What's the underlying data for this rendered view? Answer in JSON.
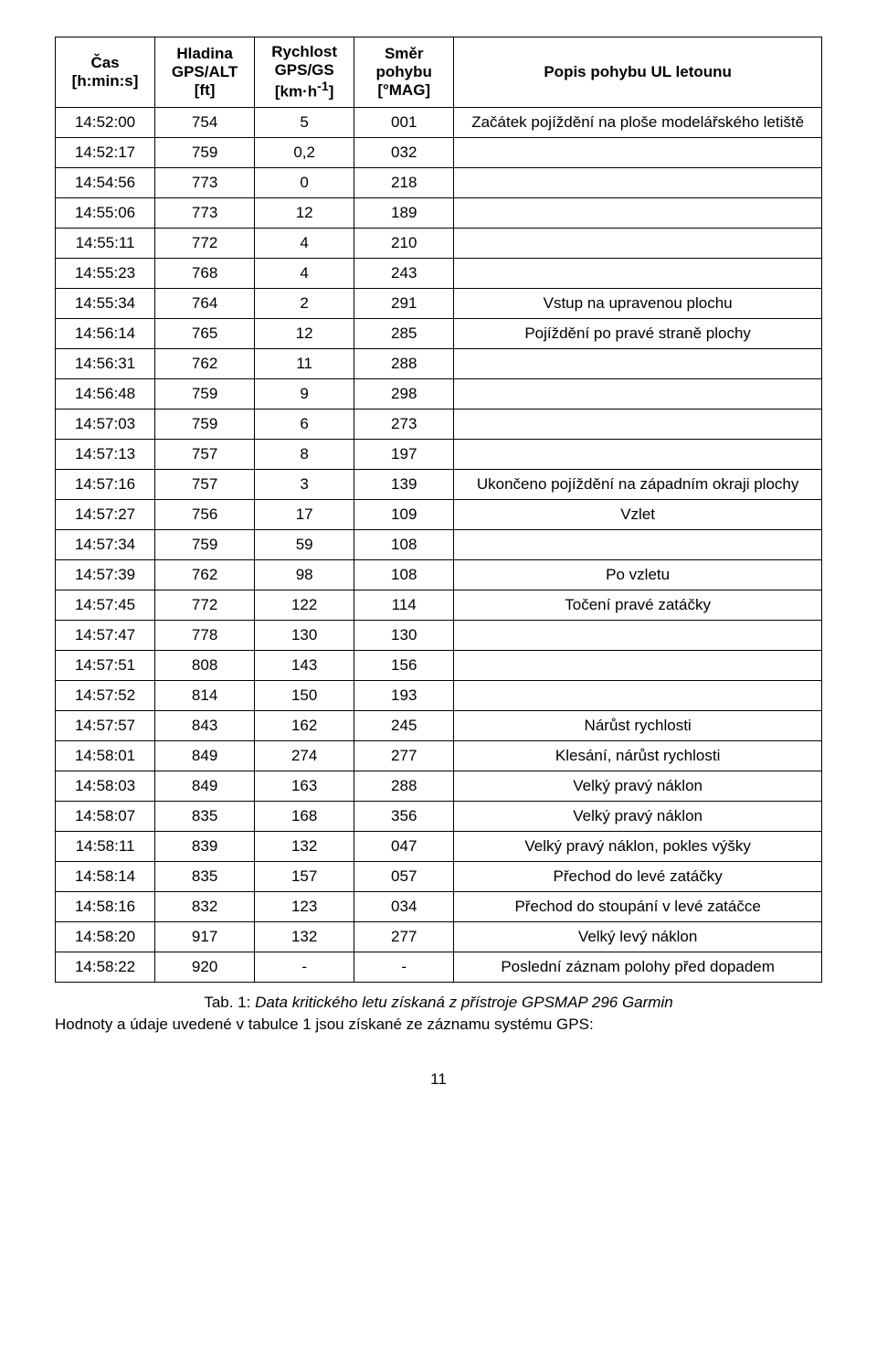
{
  "headers": {
    "col1": "Čas\n[h:min:s]",
    "col2": "Hladina\nGPS/ALT\n[ft]",
    "col3": "Rychlost\nGPS/GS\n[km·h⁻¹]",
    "col4": "Směr\npohybu\n[°MAG]",
    "col5": "Popis pohybu UL letounu"
  },
  "rows": [
    {
      "t": "14:52:00",
      "alt": "754",
      "gs": "5",
      "mag": "001",
      "desc": "Začátek pojíždění na ploše modelářského letiště"
    },
    {
      "t": "14:52:17",
      "alt": "759",
      "gs": "0,2",
      "mag": "032",
      "desc": ""
    },
    {
      "t": "14:54:56",
      "alt": "773",
      "gs": "0",
      "mag": "218",
      "desc": ""
    },
    {
      "t": "14:55:06",
      "alt": "773",
      "gs": "12",
      "mag": "189",
      "desc": ""
    },
    {
      "t": "14:55:11",
      "alt": "772",
      "gs": "4",
      "mag": "210",
      "desc": ""
    },
    {
      "t": "14:55:23",
      "alt": "768",
      "gs": "4",
      "mag": "243",
      "desc": ""
    },
    {
      "t": "14:55:34",
      "alt": "764",
      "gs": "2",
      "mag": "291",
      "desc": "Vstup na upravenou plochu"
    },
    {
      "t": "14:56:14",
      "alt": "765",
      "gs": "12",
      "mag": "285",
      "desc": "Pojíždění po pravé straně plochy"
    },
    {
      "t": "14:56:31",
      "alt": "762",
      "gs": "11",
      "mag": "288",
      "desc": ""
    },
    {
      "t": "14:56:48",
      "alt": "759",
      "gs": "9",
      "mag": "298",
      "desc": ""
    },
    {
      "t": "14:57:03",
      "alt": "759",
      "gs": "6",
      "mag": "273",
      "desc": ""
    },
    {
      "t": "14:57:13",
      "alt": "757",
      "gs": "8",
      "mag": "197",
      "desc": ""
    },
    {
      "t": "14:57:16",
      "alt": "757",
      "gs": "3",
      "mag": "139",
      "desc": "Ukončeno pojíždění na západním okraji plochy"
    },
    {
      "t": "14:57:27",
      "alt": "756",
      "gs": "17",
      "mag": "109",
      "desc": "Vzlet"
    },
    {
      "t": "14:57:34",
      "alt": "759",
      "gs": "59",
      "mag": "108",
      "desc": ""
    },
    {
      "t": "14:57:39",
      "alt": "762",
      "gs": "98",
      "mag": "108",
      "desc": "Po vzletu"
    },
    {
      "t": "14:57:45",
      "alt": "772",
      "gs": "122",
      "mag": "114",
      "desc": "Točení pravé zatáčky"
    },
    {
      "t": "14:57:47",
      "alt": "778",
      "gs": "130",
      "mag": "130",
      "desc": ""
    },
    {
      "t": "14:57:51",
      "alt": "808",
      "gs": "143",
      "mag": "156",
      "desc": ""
    },
    {
      "t": "14:57:52",
      "alt": "814",
      "gs": "150",
      "mag": "193",
      "desc": ""
    },
    {
      "t": "14:57:57",
      "alt": "843",
      "gs": "162",
      "mag": "245",
      "desc": "Nárůst rychlosti"
    },
    {
      "t": "14:58:01",
      "alt": "849",
      "gs": "274",
      "mag": "277",
      "desc": "Klesání, nárůst rychlosti"
    },
    {
      "t": "14:58:03",
      "alt": "849",
      "gs": "163",
      "mag": "288",
      "desc": "Velký pravý náklon"
    },
    {
      "t": "14:58:07",
      "alt": "835",
      "gs": "168",
      "mag": "356",
      "desc": "Velký pravý náklon"
    },
    {
      "t": "14:58:11",
      "alt": "839",
      "gs": "132",
      "mag": "047",
      "desc": "Velký pravý náklon, pokles výšky"
    },
    {
      "t": "14:58:14",
      "alt": "835",
      "gs": "157",
      "mag": "057",
      "desc": "Přechod do levé zatáčky"
    },
    {
      "t": "14:58:16",
      "alt": "832",
      "gs": "123",
      "mag": "034",
      "desc": "Přechod do stoupání v levé zatáčce"
    },
    {
      "t": "14:58:20",
      "alt": "917",
      "gs": "132",
      "mag": "277",
      "desc": "Velký levý náklon"
    },
    {
      "t": "14:58:22",
      "alt": "920",
      "gs": "-",
      "mag": "-",
      "desc": "Poslední záznam polohy před dopadem"
    }
  ],
  "caption": {
    "label": "Tab. 1: ",
    "text_italic": "Data kritického letu získaná z přístroje GPSMAP 296 Garmin",
    "line2": "Hodnoty a údaje uvedené v tabulce 1 jsou získané ze záznamu systému GPS:"
  },
  "page_number": "11"
}
